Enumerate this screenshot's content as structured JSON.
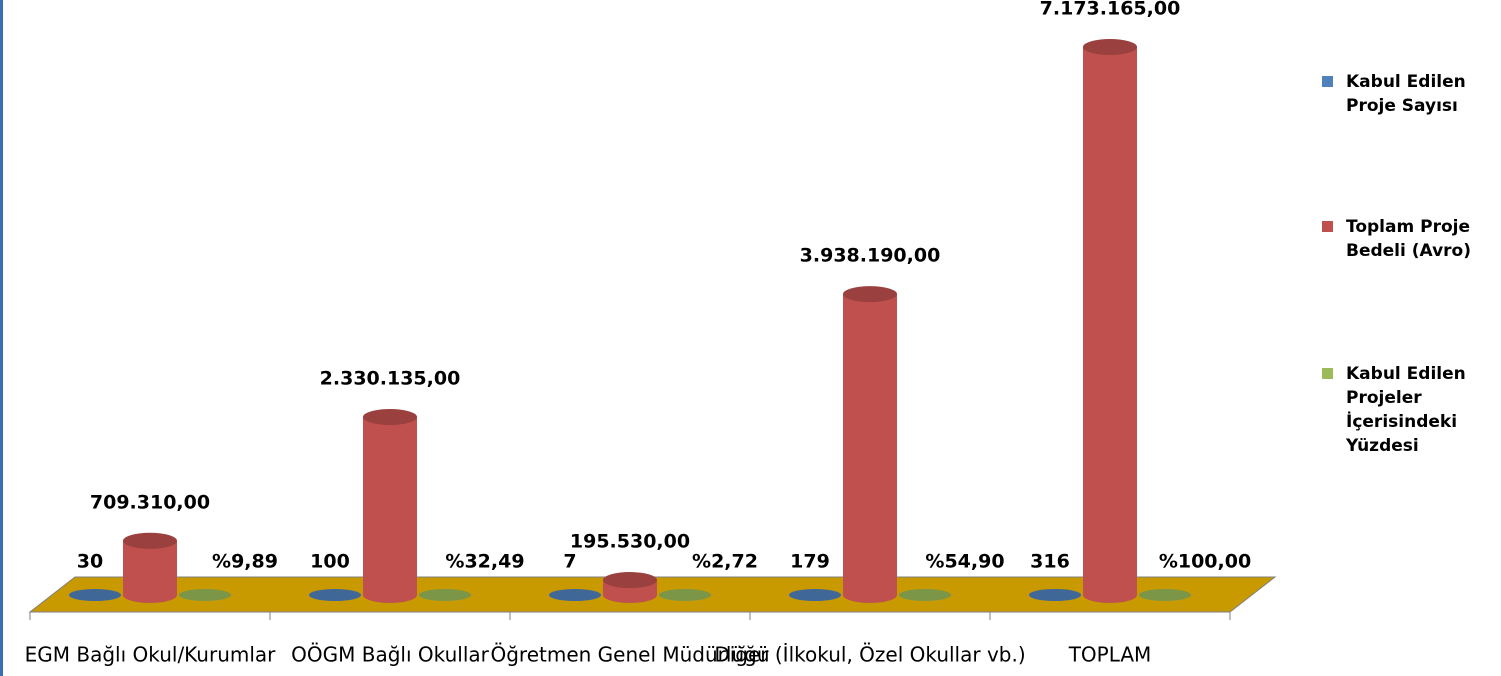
{
  "chart_data": {
    "type": "bar3d",
    "categories": [
      "EGM Bağlı Okul/Kurumlar",
      "OÖGM Bağlı Okullar",
      "Öğretmen Genel Müdürlüğü",
      "Diğer (İlkokul, Özel Okullar vb.)",
      "TOPLAM"
    ],
    "series": [
      {
        "name": "Kabul Edilen Proje Sayısı",
        "color": "#4f81bd",
        "values": [
          30,
          100,
          7,
          179,
          316
        ]
      },
      {
        "name": "Toplam Proje Bedeli (Avro)",
        "color": "#c0504d",
        "values": [
          709310,
          2330135,
          195530,
          3938190,
          7173165
        ],
        "value_labels": [
          "709.310,00",
          "2.330.135,00",
          "195.530,00",
          "3.938.190,00",
          "7.173.165,00"
        ]
      },
      {
        "name": "Kabul Edilen Projeler İçerisindeki Yüzdesi",
        "color": "#9bbb59",
        "values": [
          9.89,
          32.49,
          2.72,
          54.9,
          100
        ],
        "value_labels": [
          "%9,89",
          "%32,49",
          "%2,72",
          "%54,90",
          "%100,00"
        ]
      }
    ],
    "ylim": [
      0,
      7500000
    ],
    "legend": "right"
  }
}
